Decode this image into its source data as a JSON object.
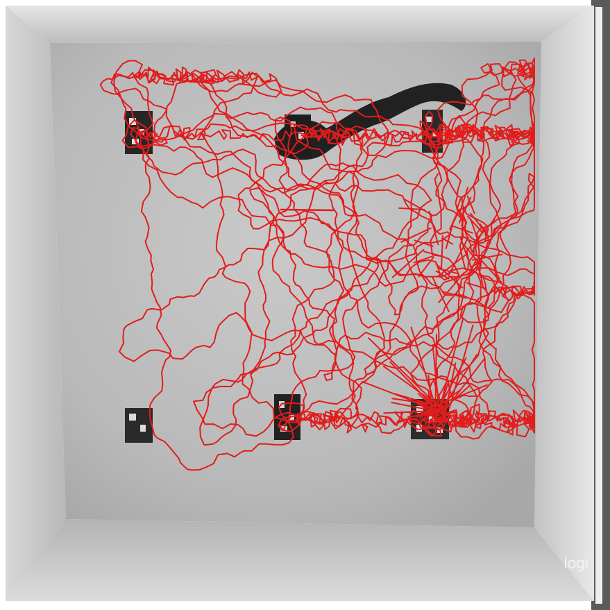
{
  "scene": {
    "description_type": "top-down camera view of an open-field arena with an animal movement track",
    "track_color": "#e11d1d",
    "floor_color": "#c8c8c8",
    "wall_color": "#e4e4e4",
    "object_color": "#1e1e1e"
  },
  "watermark": {
    "text": "logi"
  }
}
